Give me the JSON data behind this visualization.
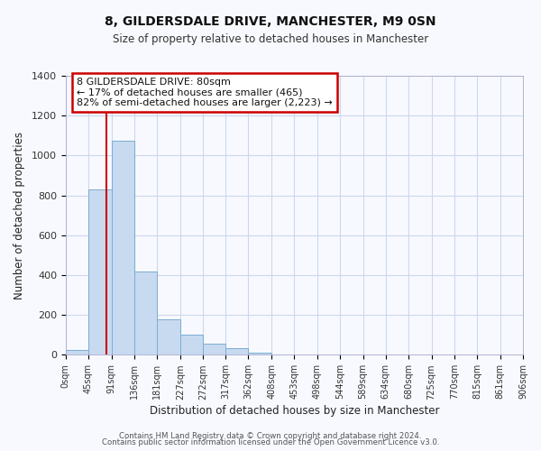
{
  "title": "8, GILDERSDALE DRIVE, MANCHESTER, M9 0SN",
  "subtitle": "Size of property relative to detached houses in Manchester",
  "xlabel": "Distribution of detached houses by size in Manchester",
  "ylabel": "Number of detached properties",
  "bar_edges": [
    0,
    45,
    91,
    136,
    181,
    227,
    272,
    317,
    362,
    408,
    453,
    498,
    544,
    589,
    634,
    680,
    725,
    770,
    815,
    861,
    906
  ],
  "bar_heights": [
    25,
    830,
    1075,
    420,
    180,
    100,
    55,
    35,
    10,
    3,
    1,
    0,
    0,
    0,
    0,
    0,
    0,
    0,
    0,
    0
  ],
  "tick_labels": [
    "0sqm",
    "45sqm",
    "91sqm",
    "136sqm",
    "181sqm",
    "227sqm",
    "272sqm",
    "317sqm",
    "362sqm",
    "408sqm",
    "453sqm",
    "498sqm",
    "544sqm",
    "589sqm",
    "634sqm",
    "680sqm",
    "725sqm",
    "770sqm",
    "815sqm",
    "861sqm",
    "906sqm"
  ],
  "bar_color": "#c8daef",
  "bar_edge_color": "#7aadd4",
  "vline_x": 80,
  "vline_color": "#cc0000",
  "ylim": [
    0,
    1400
  ],
  "yticks": [
    0,
    200,
    400,
    600,
    800,
    1000,
    1200,
    1400
  ],
  "annotation_line1": "8 GILDERSDALE DRIVE: 80sqm",
  "annotation_line2": "← 17% of detached houses are smaller (465)",
  "annotation_line3": "82% of semi-detached houses are larger (2,223) →",
  "annotation_box_color": "#cc0000",
  "footer_line1": "Contains HM Land Registry data © Crown copyright and database right 2024.",
  "footer_line2": "Contains public sector information licensed under the Open Government Licence v3.0.",
  "bg_color": "#f7f9fe",
  "grid_color": "#ccd8ee"
}
